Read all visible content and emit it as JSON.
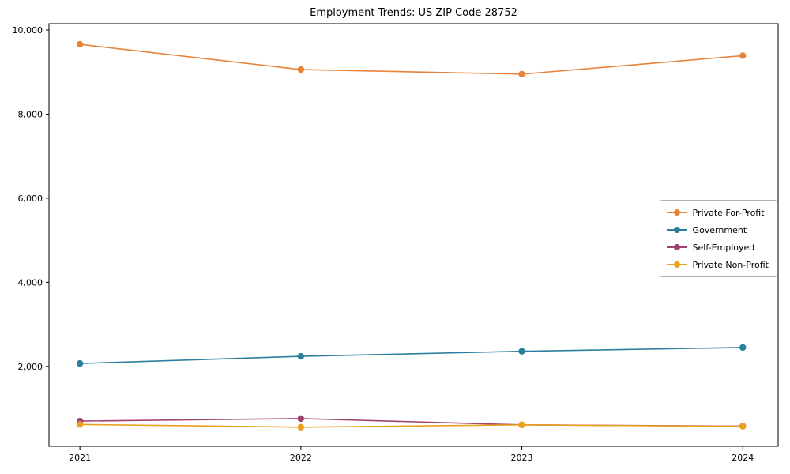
{
  "title": "Employment Trends: US ZIP Code 28752",
  "chart_data": {
    "type": "line",
    "title": "Employment Trends: US ZIP Code 28752",
    "xlabel": "",
    "ylabel": "",
    "categories": [
      "2021",
      "2022",
      "2023",
      "2024"
    ],
    "series": [
      {
        "name": "Private For-Profit",
        "color": "#e8833a",
        "values": [
          9660,
          9060,
          8950,
          9390
        ]
      },
      {
        "name": "Government",
        "color": "#2b7e9e",
        "values": [
          2070,
          2240,
          2360,
          2450
        ]
      },
      {
        "name": "Self-Employed",
        "color": "#a0426f",
        "values": [
          700,
          760,
          610,
          580
        ]
      },
      {
        "name": "Private Non-Profit",
        "color": "#e8a21e",
        "values": [
          620,
          555,
          610,
          575
        ]
      }
    ],
    "yticks": [
      2000,
      4000,
      6000,
      8000,
      10000
    ],
    "ylim": [
      100,
      10150
    ],
    "grid": false,
    "legend_position": "center right",
    "marker": "circle",
    "axis_color": "#000000",
    "tick_label_color": "#000000"
  }
}
